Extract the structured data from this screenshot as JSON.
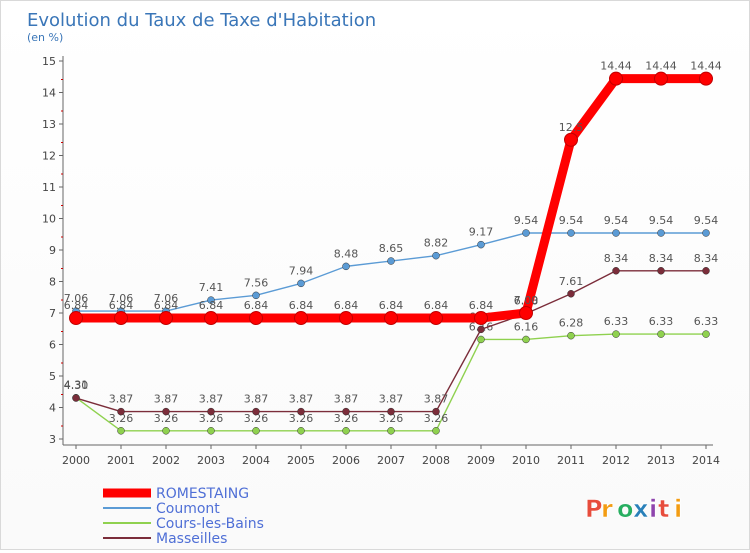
{
  "chart_data": {
    "type": "line",
    "title": "Evolution du Taux de Taxe d'Habitation",
    "subtitle": "(en %)",
    "x": [
      "2000",
      "2001",
      "2002",
      "2003",
      "2004",
      "2005",
      "2006",
      "2007",
      "2008",
      "2009",
      "2010",
      "2011",
      "2012",
      "2013",
      "2014"
    ],
    "ylim": [
      3,
      15
    ],
    "yticks": [
      3,
      4,
      5,
      6,
      7,
      8,
      9,
      10,
      11,
      12,
      13,
      14,
      15
    ],
    "grid": false,
    "legend_position": "bottom-left",
    "series": [
      {
        "name": "Coumont",
        "color": "#5b9bd5",
        "values": [
          7.06,
          7.06,
          7.06,
          7.41,
          7.56,
          7.94,
          8.48,
          8.65,
          8.82,
          9.17,
          9.54,
          9.54,
          9.54,
          9.54,
          9.54
        ],
        "labels": [
          "7.06",
          "7.06",
          "7.06",
          "7.41",
          "7.56",
          "7.94",
          "8.48",
          "8.65",
          "8.82",
          "9.17",
          "9.54",
          "9.54",
          "9.54",
          "9.54",
          "9.54"
        ]
      },
      {
        "name": "Cours-les-Bains",
        "color": "#8fd14f",
        "values": [
          4.31,
          3.26,
          3.26,
          3.26,
          3.26,
          3.26,
          3.26,
          3.26,
          3.26,
          6.16,
          6.16,
          6.28,
          6.33,
          6.33,
          6.33
        ],
        "labels": [
          "4.31",
          "3.26",
          "3.26",
          "3.26",
          "3.26",
          "3.26",
          "3.26",
          "3.26",
          "3.26",
          "6.16",
          "6.16",
          "6.28",
          "6.33",
          "6.33",
          "6.33"
        ]
      },
      {
        "name": "Masseilles",
        "color": "#7b2d3a",
        "values": [
          4.3,
          3.87,
          3.87,
          3.87,
          3.87,
          3.87,
          3.87,
          3.87,
          3.87,
          6.48,
          6.98,
          7.61,
          8.34,
          8.34,
          8.34
        ],
        "labels": [
          "4.30",
          "3.87",
          "3.87",
          "3.87",
          "3.87",
          "3.87",
          "3.87",
          "3.87",
          "3.87",
          "6.48",
          "6.98",
          "7.61",
          "8.34",
          "8.34",
          "8.34"
        ]
      },
      {
        "name": "ROMESTAING",
        "color": "#ff0000",
        "emphasis": true,
        "values": [
          6.84,
          6.84,
          6.84,
          6.84,
          6.84,
          6.84,
          6.84,
          6.84,
          6.84,
          6.84,
          7.0,
          12.5,
          14.44,
          14.44,
          14.44
        ],
        "labels": [
          "6.84",
          "6.84",
          "6.84",
          "6.84",
          "6.84",
          "6.84",
          "6.84",
          "6.84",
          "6.84",
          "6.84",
          "7.00",
          "12.5",
          "14.44",
          "14.44",
          "14.44"
        ]
      }
    ],
    "legend_order": [
      "ROMESTAING",
      "Coumont",
      "Cours-les-Bains",
      "Masseilles"
    ]
  },
  "logo": {
    "text": "Proxiti",
    "colors": [
      "#e74c3c",
      "#f39c12",
      "#27ae60",
      "#2980b9",
      "#8e44ad"
    ]
  }
}
